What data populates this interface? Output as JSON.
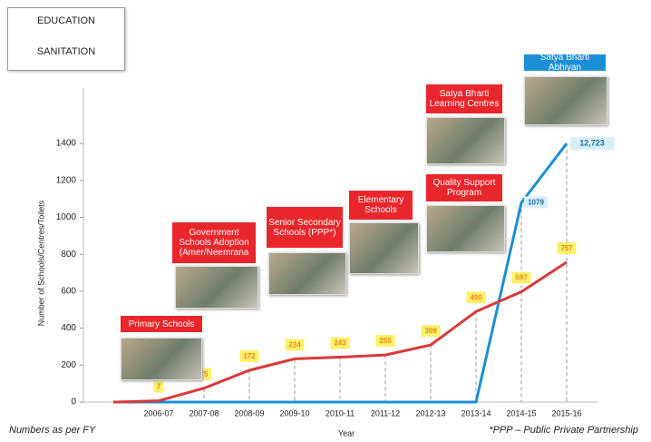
{
  "chart_data": {
    "type": "line",
    "x_label": "Year",
    "y_label": "Number of Schools/Centres/Toilets",
    "categories": [
      null,
      "2006-07",
      "2007-08",
      "2008-09",
      "2009-10",
      "2010-11",
      "2011-12",
      "2012-13",
      "2013-14",
      "2014-15",
      "2015-16"
    ],
    "series": [
      {
        "name": "EDUCATION",
        "color": "#d9393a",
        "values": [
          0,
          7,
          75,
          172,
          234,
          243,
          255,
          309,
          490,
          597,
          757
        ],
        "value_labels": [
          null,
          "7",
          "75",
          "172",
          "234",
          "243",
          "255",
          "309",
          "490",
          "597",
          "757"
        ]
      },
      {
        "name": "SANITATION",
        "color": "#1b8fd6",
        "values": [
          0,
          0,
          0,
          0,
          0,
          0,
          0,
          0,
          0,
          1079,
          1400
        ],
        "value_labels": [
          null,
          null,
          null,
          null,
          null,
          null,
          null,
          null,
          null,
          "1079",
          null
        ]
      }
    ],
    "annotation": "12,723",
    "ylim": [
      0,
      1700
    ],
    "yticks": [
      0,
      200,
      400,
      600,
      800,
      1000,
      1200,
      1400
    ],
    "callouts": [
      "Primary Schools",
      "Government Schools Adoption (Amer/Neemrana",
      "Senior Secondary Schools (PPP*)",
      "Elementary Schools",
      "Quality Support Program",
      "Satya Bharti Learning Centres",
      "Satya Bharti Abhiyan"
    ],
    "notes": [
      "Numbers as per FY",
      "*PPP – Public Private Partnership"
    ]
  }
}
